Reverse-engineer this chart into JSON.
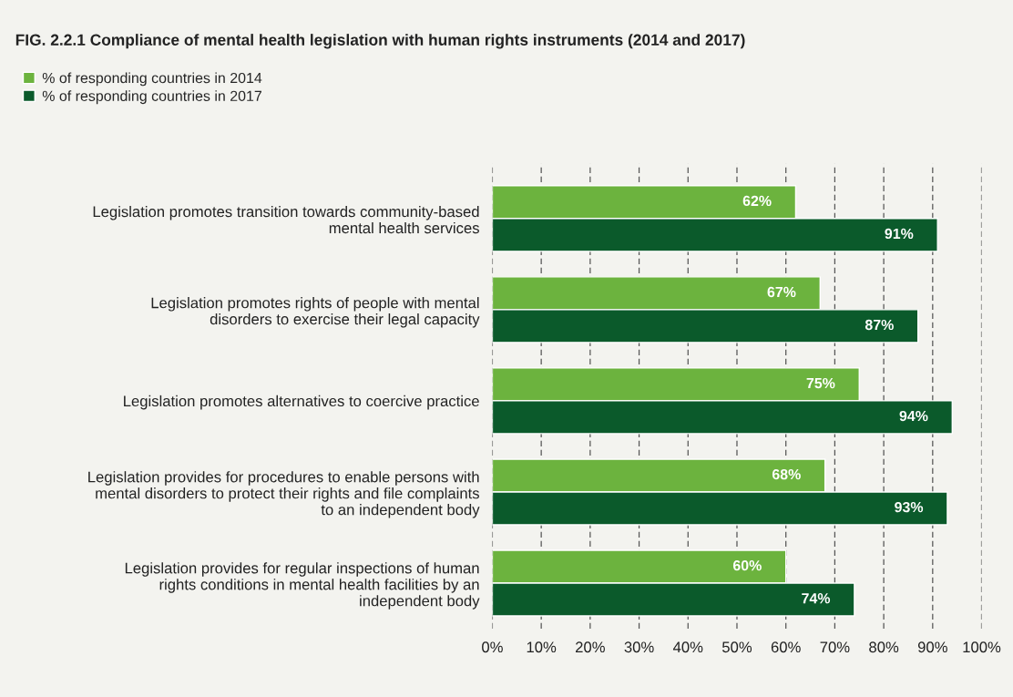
{
  "chart_data": {
    "type": "bar",
    "orientation": "horizontal",
    "title": "FIG. 2.2.1 Compliance of mental health legislation with human rights instruments (2014 and 2017)",
    "categories": [
      "Legislation promotes transition towards community-based\nmental health services",
      "Legislation promotes rights of people with mental\ndisorders to exercise their legal capacity",
      "Legislation promotes alternatives to coercive practice",
      "Legislation provides for procedures to enable persons with\nmental disorders to protect their rights and file complaints\nto an independent body",
      "Legislation provides for regular inspections of human\nrights conditions in mental health facilities by an\nindependent body"
    ],
    "series": [
      {
        "name": "% of responding countries in 2014",
        "color": "#6cb33e",
        "values": [
          62,
          67,
          75,
          68,
          60
        ],
        "value_labels": [
          "62%",
          "67%",
          "75%",
          "68%",
          "60%"
        ]
      },
      {
        "name": "% of responding countries in 2017",
        "color": "#0b5a2b",
        "values": [
          91,
          87,
          94,
          93,
          74
        ],
        "value_labels": [
          "91%",
          "87%",
          "94%",
          "93%",
          "74%"
        ]
      }
    ],
    "xlim": [
      0,
      100
    ],
    "xticks": [
      {
        "value": 0,
        "label": "0%"
      },
      {
        "value": 10,
        "label": "10%"
      },
      {
        "value": 20,
        "label": "20%"
      },
      {
        "value": 30,
        "label": "30%"
      },
      {
        "value": 40,
        "label": "40%"
      },
      {
        "value": 50,
        "label": "50%"
      },
      {
        "value": 60,
        "label": "60%"
      },
      {
        "value": 70,
        "label": "70%"
      },
      {
        "value": 80,
        "label": "80%"
      },
      {
        "value": 90,
        "label": "90%"
      },
      {
        "value": 100,
        "label": "100%"
      }
    ],
    "grid": "x",
    "legend": "top left"
  }
}
